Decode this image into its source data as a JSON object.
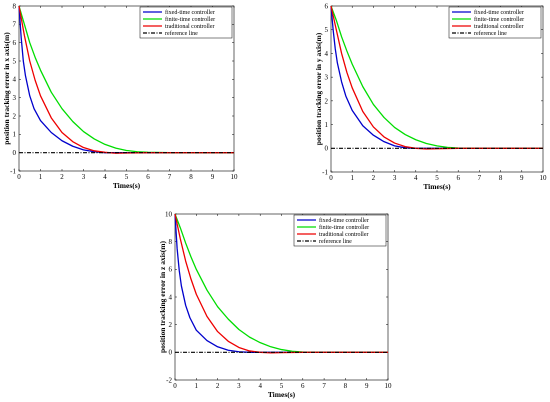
{
  "chart_data": [
    {
      "type": "line",
      "xlabel": "Times(s)",
      "ylabel": "position tracking error in x axis(m)",
      "xlim": [
        0,
        10
      ],
      "ylim": [
        -1,
        8
      ],
      "xticks": [
        0,
        1,
        2,
        3,
        4,
        5,
        6,
        7,
        8,
        9,
        10
      ],
      "yticks": [
        -1,
        0,
        1,
        2,
        3,
        4,
        5,
        6,
        7,
        8
      ],
      "legend_position": "top-right",
      "series": [
        {
          "name": "fixed-time controller",
          "color": "#0000cc",
          "x": [
            0,
            0.1,
            0.2,
            0.3,
            0.5,
            0.7,
            1.0,
            1.5,
            2.0,
            2.5,
            3.0,
            3.5,
            4.0,
            5.0,
            6.0,
            8.0,
            10.0
          ],
          "y": [
            8,
            6.3,
            5.0,
            4.2,
            3.1,
            2.4,
            1.75,
            1.1,
            0.65,
            0.35,
            0.15,
            0.05,
            0.0,
            0,
            0,
            0,
            0
          ]
        },
        {
          "name": "finite-time controller",
          "color": "#00dd00",
          "x": [
            0,
            0.25,
            0.5,
            0.75,
            1.0,
            1.5,
            2.0,
            2.5,
            3.0,
            3.5,
            4.0,
            4.5,
            5.0,
            5.5,
            6.0,
            7.0,
            8.0,
            10.0
          ],
          "y": [
            8,
            7.0,
            6.0,
            5.2,
            4.5,
            3.3,
            2.4,
            1.7,
            1.15,
            0.75,
            0.45,
            0.25,
            0.12,
            0.05,
            0.02,
            0,
            0,
            0
          ]
        },
        {
          "name": "traditional controller",
          "color": "#ee0000",
          "x": [
            0,
            0.25,
            0.5,
            0.75,
            1.0,
            1.5,
            2.0,
            2.5,
            3.0,
            3.5,
            4.0,
            4.5,
            5.0,
            6.0,
            8.0,
            10.0
          ],
          "y": [
            8,
            6.4,
            5.0,
            3.95,
            3.1,
            1.9,
            1.1,
            0.6,
            0.28,
            0.1,
            0.02,
            -0.03,
            -0.02,
            0,
            0,
            0
          ]
        },
        {
          "name": "reference line",
          "color": "#000000",
          "dash": true,
          "x": [
            0,
            10
          ],
          "y": [
            0,
            0
          ]
        }
      ]
    },
    {
      "type": "line",
      "xlabel": "Times(s)",
      "ylabel": "position tracking error in y axis(m)",
      "xlim": [
        0,
        10
      ],
      "ylim": [
        -1,
        6
      ],
      "xticks": [
        0,
        1,
        2,
        3,
        4,
        5,
        6,
        7,
        8,
        9,
        10
      ],
      "yticks": [
        -1,
        0,
        1,
        2,
        3,
        4,
        5,
        6
      ],
      "legend_position": "top-right",
      "series": [
        {
          "name": "fixed-time controller",
          "color": "#0000cc",
          "x": [
            0,
            0.1,
            0.2,
            0.3,
            0.5,
            0.7,
            1.0,
            1.5,
            2.0,
            2.5,
            3.0,
            3.5,
            4.0,
            5.0,
            6.0,
            8.0,
            10.0
          ],
          "y": [
            6,
            5.0,
            4.2,
            3.6,
            2.8,
            2.2,
            1.6,
            0.95,
            0.55,
            0.28,
            0.1,
            0.02,
            0.0,
            0,
            0,
            0,
            0
          ]
        },
        {
          "name": "finite-time controller",
          "color": "#00dd00",
          "x": [
            0,
            0.25,
            0.5,
            0.75,
            1.0,
            1.5,
            2.0,
            2.5,
            3.0,
            3.5,
            4.0,
            4.5,
            5.0,
            5.5,
            6.0,
            7.0,
            8.0,
            10.0
          ],
          "y": [
            6,
            5.4,
            4.7,
            4.1,
            3.55,
            2.6,
            1.85,
            1.3,
            0.88,
            0.58,
            0.36,
            0.2,
            0.1,
            0.04,
            0.01,
            0,
            0,
            0
          ]
        },
        {
          "name": "traditional controller",
          "color": "#ee0000",
          "x": [
            0,
            0.25,
            0.5,
            0.75,
            1.0,
            1.5,
            2.0,
            2.5,
            3.0,
            3.5,
            4.0,
            4.5,
            5.0,
            6.0,
            8.0,
            10.0
          ],
          "y": [
            6,
            5.0,
            4.0,
            3.2,
            2.55,
            1.55,
            0.9,
            0.48,
            0.22,
            0.07,
            0.0,
            -0.03,
            -0.02,
            0,
            0,
            0
          ]
        },
        {
          "name": "reference line",
          "color": "#000000",
          "dash": true,
          "x": [
            0,
            10
          ],
          "y": [
            0,
            0
          ]
        }
      ]
    },
    {
      "type": "line",
      "xlabel": "Times(s)",
      "ylabel": "position tracking error in z axis(m)",
      "xlim": [
        0,
        10
      ],
      "ylim": [
        -2,
        10
      ],
      "xticks": [
        0,
        1,
        2,
        3,
        4,
        5,
        6,
        7,
        8,
        9,
        10
      ],
      "yticks": [
        -2,
        0,
        2,
        4,
        6,
        8,
        10
      ],
      "legend_position": "top-right",
      "series": [
        {
          "name": "fixed-time controller",
          "color": "#0000cc",
          "x": [
            0,
            0.1,
            0.2,
            0.3,
            0.5,
            0.7,
            1.0,
            1.5,
            2.0,
            2.5,
            3.0,
            3.5,
            4.0,
            5.0,
            6.0,
            8.0,
            10.0
          ],
          "y": [
            10,
            7.5,
            5.9,
            4.8,
            3.4,
            2.5,
            1.6,
            0.85,
            0.4,
            0.15,
            0.04,
            0.0,
            0.0,
            0,
            0,
            0,
            0
          ]
        },
        {
          "name": "finite-time controller",
          "color": "#00dd00",
          "x": [
            0,
            0.25,
            0.5,
            0.75,
            1.0,
            1.5,
            2.0,
            2.5,
            3.0,
            3.5,
            4.0,
            4.5,
            5.0,
            5.5,
            6.0,
            7.0,
            8.0,
            10.0
          ],
          "y": [
            10,
            9.0,
            7.9,
            6.9,
            6.0,
            4.5,
            3.3,
            2.4,
            1.65,
            1.1,
            0.7,
            0.4,
            0.2,
            0.08,
            0.02,
            0,
            0,
            0
          ]
        },
        {
          "name": "traditional controller",
          "color": "#ee0000",
          "x": [
            0,
            0.25,
            0.5,
            0.75,
            1.0,
            1.5,
            2.0,
            2.5,
            3.0,
            3.5,
            4.0,
            4.5,
            5.0,
            6.0,
            8.0,
            10.0
          ],
          "y": [
            10,
            8.2,
            6.6,
            5.3,
            4.2,
            2.6,
            1.5,
            0.8,
            0.35,
            0.1,
            0.0,
            -0.04,
            -0.02,
            0,
            0,
            0
          ]
        },
        {
          "name": "reference line",
          "color": "#000000",
          "dash": true,
          "x": [
            0,
            10
          ],
          "y": [
            0,
            0
          ]
        }
      ]
    }
  ]
}
